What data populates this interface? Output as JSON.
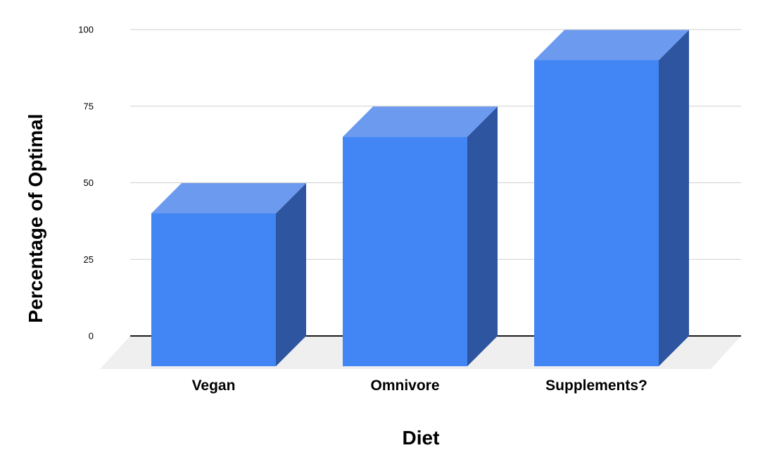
{
  "chart_data": {
    "type": "bar",
    "style": "3d-column",
    "categories": [
      "Vegan",
      "Omnivore",
      "Supplements?"
    ],
    "values": [
      40,
      65,
      90
    ],
    "title": "",
    "xlabel": "Diet",
    "ylabel": "Percentage of Optimal",
    "ylim": [
      0,
      100
    ],
    "yticks": [
      0,
      25,
      50,
      75,
      100
    ],
    "grid": true,
    "legend": "none",
    "background": "#FFFFFF",
    "colors": {
      "bar_front": "#4285F4",
      "bar_top": "#6C9AEF",
      "bar_side": "#2D55A0",
      "floor": "#EFEFEF",
      "gridline": "#CFCFCF",
      "zero_line": "#1A1A1A",
      "text": "#000000"
    }
  }
}
